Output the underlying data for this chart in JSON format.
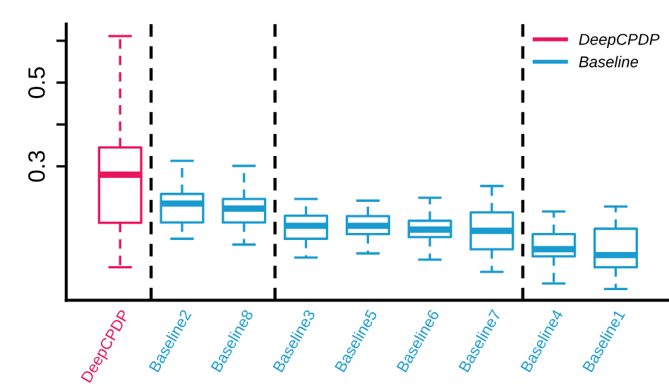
{
  "chart_data": {
    "type": "box",
    "categories": [
      "DeepCPDP",
      "Baseline2",
      "Baseline8",
      "Baseline3",
      "Baseline5",
      "Baseline6",
      "Baseline7",
      "Baseline4",
      "Baseline1"
    ],
    "series": [
      {
        "name": "DeepCPDP",
        "color": "#e8175d",
        "boxes": [
          {
            "low": 0.059,
            "q1": 0.165,
            "median": 0.28,
            "q3": 0.345,
            "high": 0.611
          },
          null,
          null,
          null,
          null,
          null,
          null,
          null,
          null
        ]
      },
      {
        "name": "Baseline",
        "color": "#1a9bd0",
        "boxes": [
          null,
          {
            "low": 0.127,
            "q1": 0.166,
            "median": 0.211,
            "q3": 0.234,
            "high": 0.313
          },
          {
            "low": 0.113,
            "q1": 0.166,
            "median": 0.199,
            "q3": 0.222,
            "high": 0.301
          },
          {
            "low": 0.082,
            "q1": 0.127,
            "median": 0.158,
            "q3": 0.182,
            "high": 0.222
          },
          {
            "low": 0.092,
            "q1": 0.138,
            "median": 0.158,
            "q3": 0.181,
            "high": 0.218
          },
          {
            "low": 0.077,
            "q1": 0.131,
            "median": 0.149,
            "q3": 0.17,
            "high": 0.225
          },
          {
            "low": 0.048,
            "q1": 0.102,
            "median": 0.146,
            "q3": 0.19,
            "high": 0.253
          },
          {
            "low": 0.02,
            "q1": 0.085,
            "median": 0.102,
            "q3": 0.138,
            "high": 0.192
          },
          {
            "low": 0.007,
            "q1": 0.059,
            "median": 0.088,
            "q3": 0.151,
            "high": 0.204
          }
        ]
      }
    ],
    "ylim": [
      -0.02,
      0.64
    ],
    "yticks": [
      {
        "value": 0.6,
        "label": null
      },
      0.5,
      {
        "value": 0.4,
        "label": null
      },
      0.3
    ],
    "legend": "top right",
    "grid": false
  }
}
